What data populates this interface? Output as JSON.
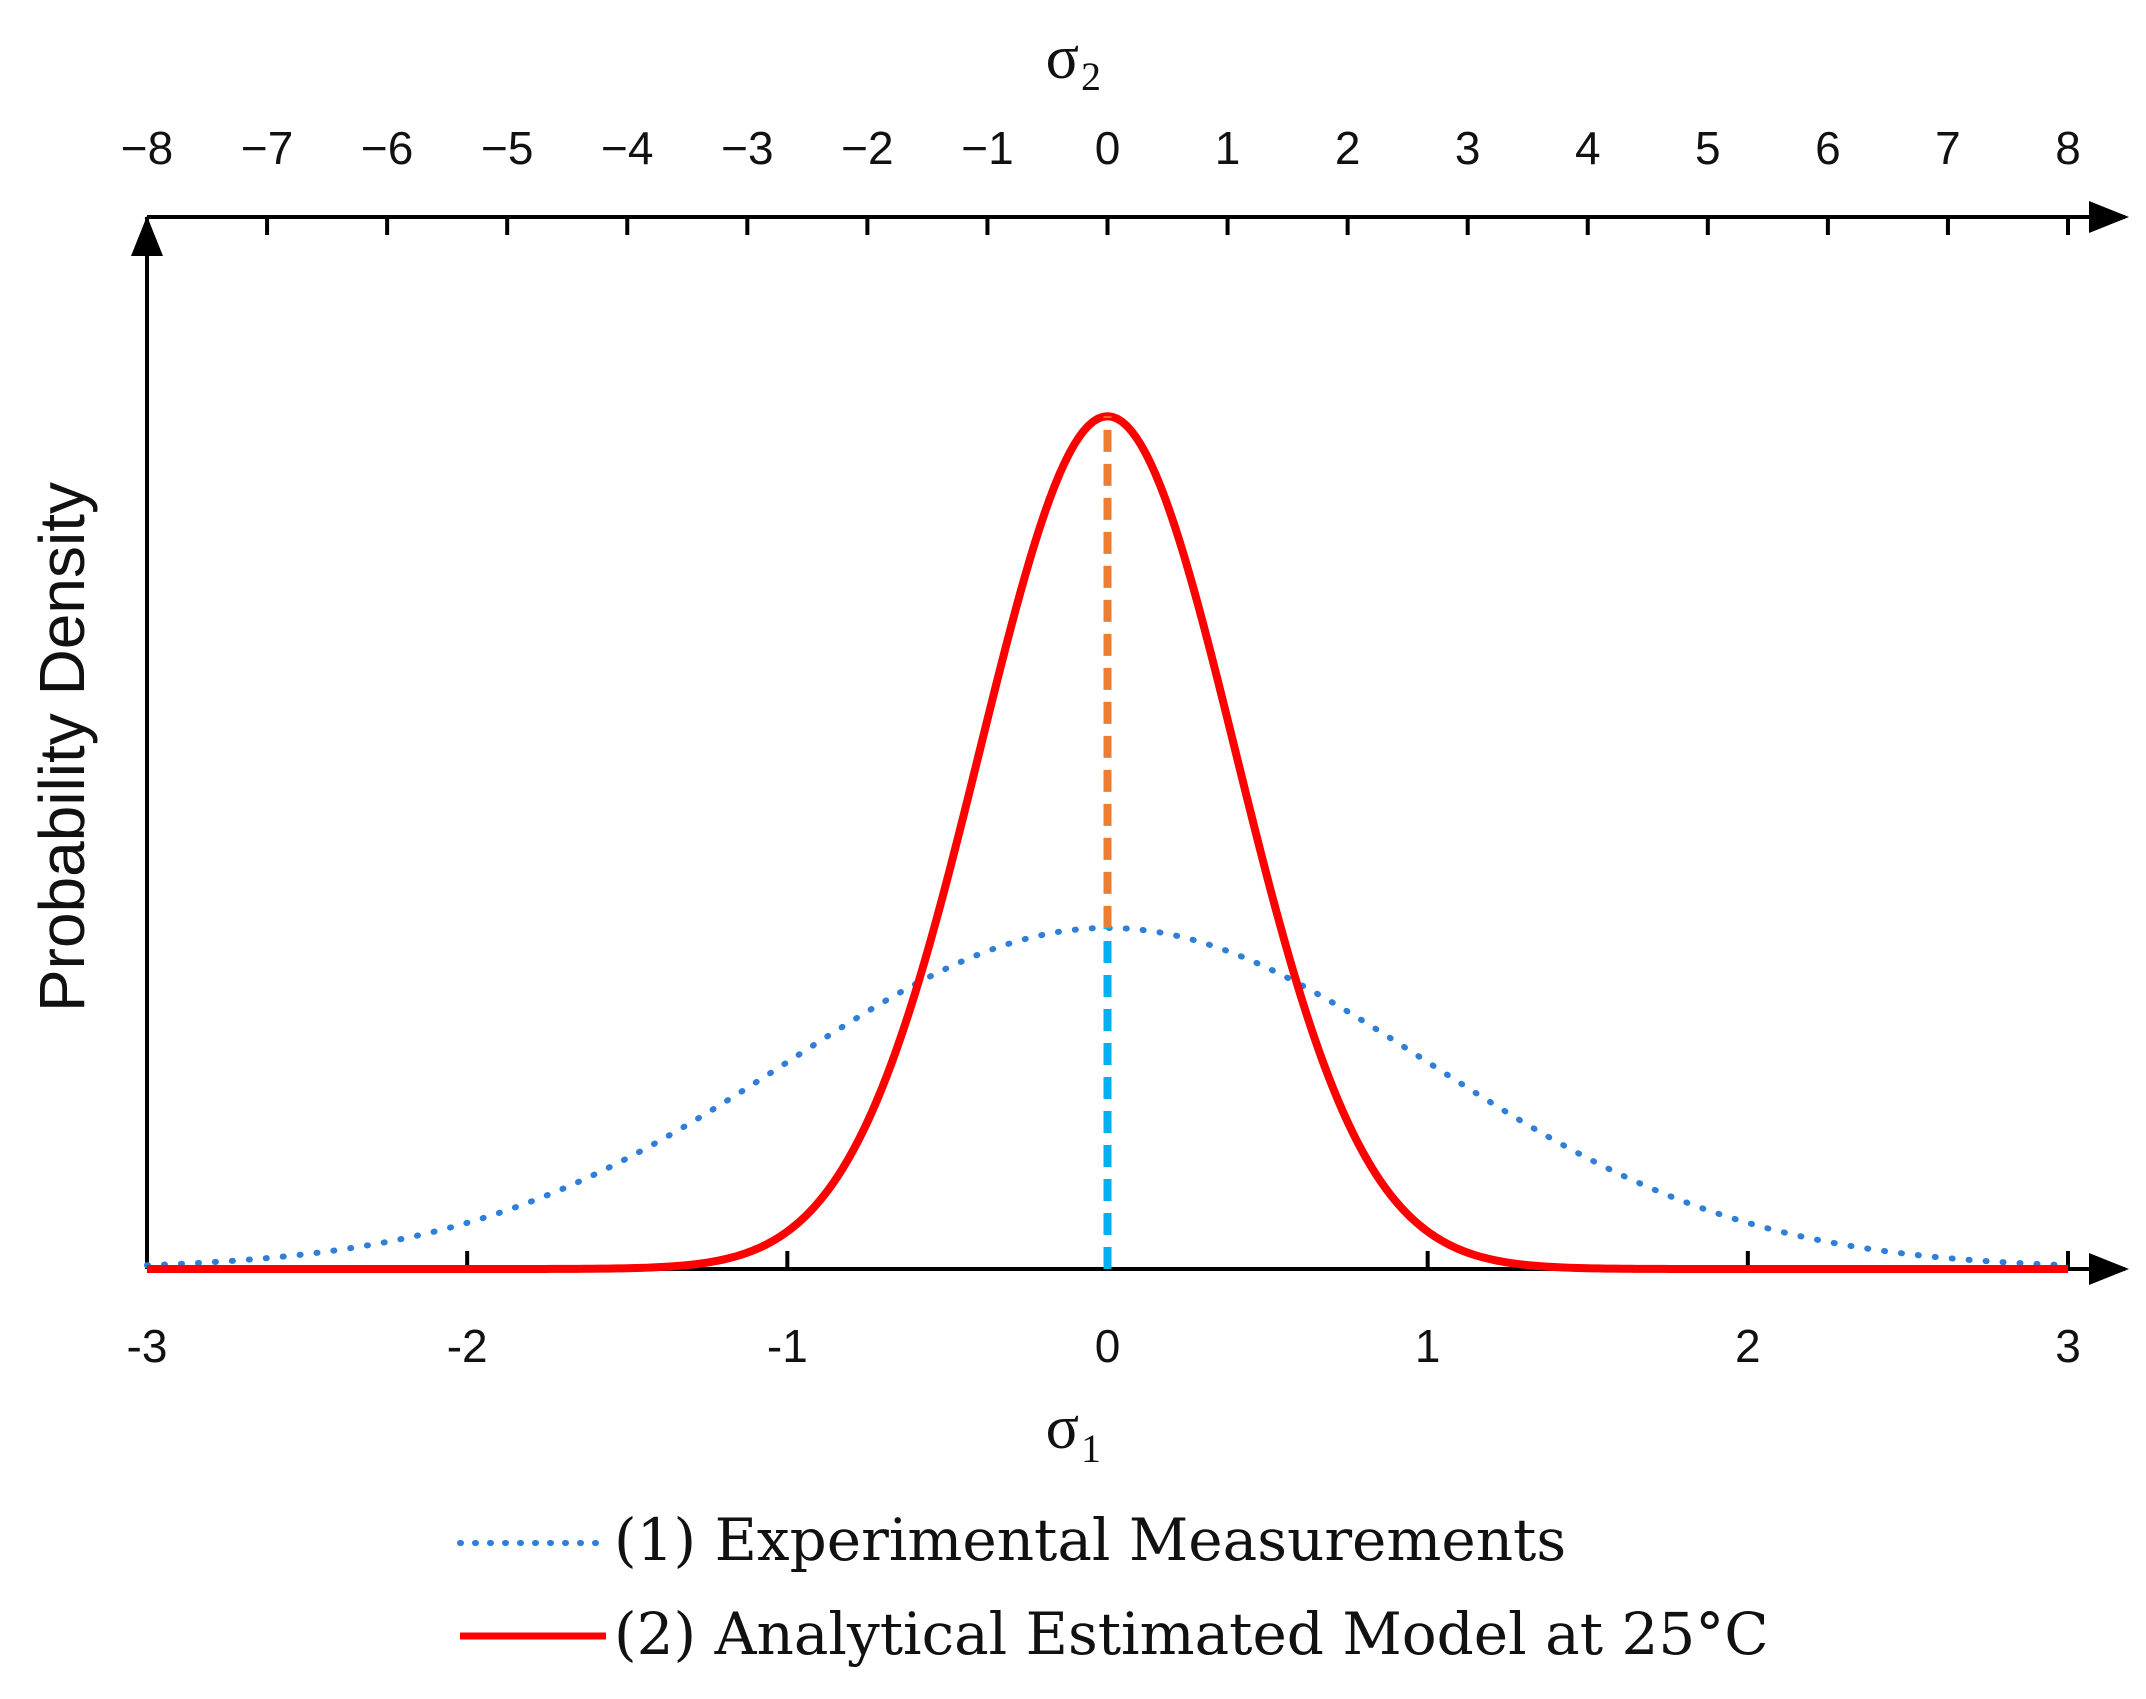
{
  "chart_data": {
    "type": "line",
    "ylabel": "Probability Density",
    "x_bottom": {
      "symbol": "σ",
      "subscript": "1",
      "range": [
        -3,
        3
      ],
      "ticks": [
        -3,
        -2,
        -1,
        0,
        1,
        2,
        3
      ],
      "tick_labels": [
        "-3",
        "-2",
        "-1",
        "0",
        "1",
        "2",
        "3"
      ]
    },
    "x_top": {
      "symbol": "σ",
      "subscript": "2",
      "range": [
        -8,
        8
      ],
      "ticks": [
        -8,
        -7,
        -6,
        -5,
        -4,
        -3,
        -2,
        -1,
        0,
        1,
        2,
        3,
        4,
        5,
        6,
        7,
        8
      ],
      "tick_labels": [
        "−8",
        "−7",
        "−6",
        "−5",
        "−4",
        "−3",
        "−2",
        "−1",
        "0",
        "1",
        "2",
        "3",
        "4",
        "5",
        "6",
        "7",
        "8"
      ]
    },
    "ylim": [
      0,
      1.1
    ],
    "series": [
      {
        "id": "s1",
        "name": "(1) Experimental Measurements",
        "style": "dotted",
        "color": "#2f7ed8",
        "distribution": "normal",
        "mean": 0,
        "std": 1,
        "peak": 0.4
      },
      {
        "id": "s2",
        "name": "(2) Analytical Estimated Model at 25°C",
        "style": "solid",
        "color": "#ff0000",
        "distribution": "normal",
        "mean": 0,
        "std": 0.4,
        "peak": 1.0
      }
    ],
    "markers": [
      {
        "x": 0,
        "y_from": 0,
        "y_to": 0.4,
        "color": "#00b0f0",
        "style": "dashed"
      },
      {
        "x": 0,
        "y_from": 0.4,
        "y_to": 1.0,
        "color": "#ed7d31",
        "style": "dashed"
      }
    ]
  },
  "legend": {
    "items": [
      {
        "label": "(1) Experimental Measurements",
        "style": "dotted",
        "color": "#2f7ed8"
      },
      {
        "label": "(2) Analytical Estimated Model at 25°C",
        "style": "solid",
        "color": "#ff0000"
      }
    ]
  }
}
